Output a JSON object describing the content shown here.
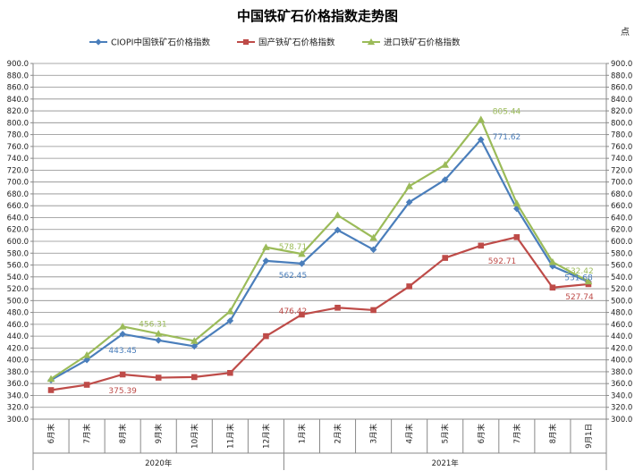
{
  "chart_data": {
    "type": "line",
    "title": "中国铁矿石价格指数走势图",
    "unit_label": "点",
    "categories": [
      "6月末",
      "7月末",
      "8月末",
      "9月末",
      "10月末",
      "11月末",
      "12月末",
      "1月末",
      "2月末",
      "3月末",
      "4月末",
      "5月末",
      "6月末",
      "7月末",
      "8月末",
      "9月1日"
    ],
    "year_groups": [
      {
        "label": "2020年",
        "start": 0,
        "end": 6
      },
      {
        "label": "2021年",
        "start": 7,
        "end": 15
      }
    ],
    "ylim": [
      300,
      900
    ],
    "ystep": 20,
    "grid": true,
    "legend_position": "top",
    "series": [
      {
        "name": "CIOPI中国铁矿石价格指数",
        "color": "#4a7ebb",
        "marker": "diamond",
        "values": [
          366,
          400,
          443.45,
          433,
          423,
          466,
          567,
          562.45,
          619,
          586,
          666,
          704,
          771.62,
          655,
          558,
          531.68
        ]
      },
      {
        "name": "国产铁矿石价格指数",
        "color": "#be4b48",
        "marker": "square",
        "values": [
          349,
          358,
          375.39,
          370,
          371,
          378,
          440,
          476.42,
          488,
          484,
          524,
          572,
          592.71,
          607,
          522,
          527.74
        ]
      },
      {
        "name": "进口铁矿石价格指数",
        "color": "#9bbb59",
        "marker": "triangle",
        "values": [
          368,
          408,
          456.31,
          444,
          432,
          482,
          590,
          578.71,
          644,
          606,
          693,
          729,
          805.44,
          664,
          565,
          532.42
        ]
      }
    ],
    "data_labels": [
      {
        "series": 0,
        "index": 2,
        "text": "443.45"
      },
      {
        "series": 0,
        "index": 7,
        "text": "562.45"
      },
      {
        "series": 0,
        "index": 12,
        "text": "771.62"
      },
      {
        "series": 0,
        "index": 15,
        "text": "531.68"
      },
      {
        "series": 1,
        "index": 2,
        "text": "375.39"
      },
      {
        "series": 1,
        "index": 7,
        "text": "476.42"
      },
      {
        "series": 1,
        "index": 12,
        "text": "592.71"
      },
      {
        "series": 1,
        "index": 15,
        "text": "527.74"
      },
      {
        "series": 2,
        "index": 2,
        "text": "456.31"
      },
      {
        "series": 2,
        "index": 7,
        "text": "578.71"
      },
      {
        "series": 2,
        "index": 12,
        "text": "805.44"
      },
      {
        "series": 2,
        "index": 15,
        "text": "532.42"
      }
    ]
  }
}
